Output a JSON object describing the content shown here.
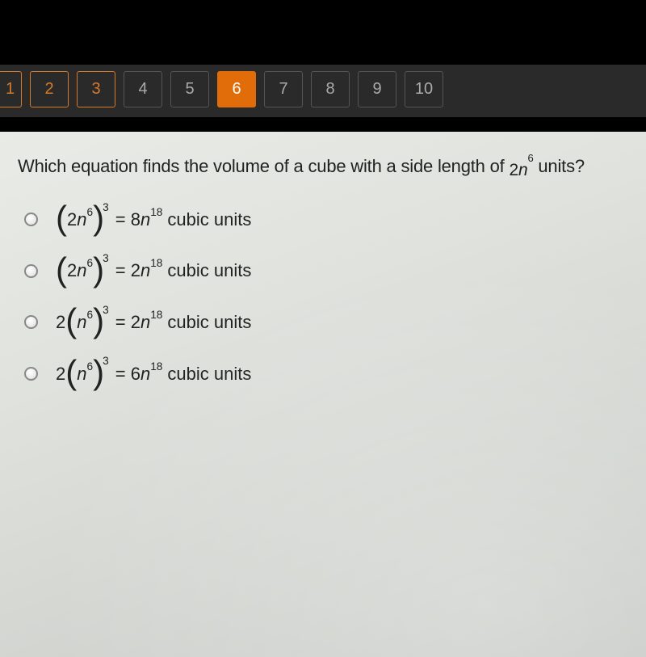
{
  "nav": {
    "items": [
      {
        "num": "1",
        "state": "answered cut"
      },
      {
        "num": "2",
        "state": "answered"
      },
      {
        "num": "3",
        "state": "answered"
      },
      {
        "num": "4",
        "state": ""
      },
      {
        "num": "5",
        "state": ""
      },
      {
        "num": "6",
        "state": "current"
      },
      {
        "num": "7",
        "state": ""
      },
      {
        "num": "8",
        "state": ""
      },
      {
        "num": "9",
        "state": ""
      },
      {
        "num": "10",
        "state": ""
      }
    ]
  },
  "question": {
    "stem_pre": "Which equation finds the volume of a cube with a side length of ",
    "side_coeff": "2",
    "side_var": "n",
    "side_exp": "6",
    "stem_post": " units?"
  },
  "options": {
    "a": {
      "leading": "",
      "inner_coeff": "2",
      "base": "n",
      "base_exp": "6",
      "outer_exp": "3",
      "rhs_coeff": "8",
      "rhs_var": "n",
      "rhs_exp": "18",
      "unit": "cubic units"
    },
    "b": {
      "leading": "",
      "inner_coeff": "2",
      "base": "n",
      "base_exp": "6",
      "outer_exp": "3",
      "rhs_coeff": "2",
      "rhs_var": "n",
      "rhs_exp": "18",
      "unit": "cubic units"
    },
    "c": {
      "leading": "2",
      "inner_coeff": "",
      "base": "n",
      "base_exp": "6",
      "outer_exp": "3",
      "rhs_coeff": "2",
      "rhs_var": "n",
      "rhs_exp": "18",
      "unit": "cubic units"
    },
    "d": {
      "leading": "2",
      "inner_coeff": "",
      "base": "n",
      "base_exp": "6",
      "outer_exp": "3",
      "rhs_coeff": "6",
      "rhs_var": "n",
      "rhs_exp": "18",
      "unit": "cubic units"
    }
  }
}
